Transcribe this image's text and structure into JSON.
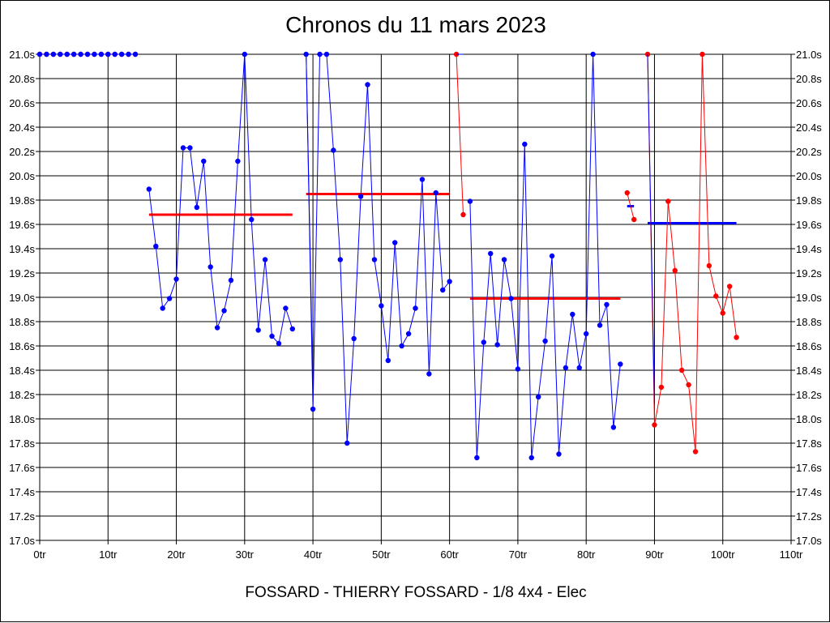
{
  "chart_data": {
    "type": "line",
    "title": "Chronos du 11 mars 2023",
    "xlabel": "FOSSARD - THIERRY FOSSARD - 1/8 4x4 - Elec",
    "ylabel": "",
    "x_ticks": [
      "0tr",
      "10tr",
      "20tr",
      "30tr",
      "40tr",
      "50tr",
      "60tr",
      "70tr",
      "80tr",
      "90tr",
      "100tr",
      "110tr"
    ],
    "y_ticks": [
      "17.0s",
      "17.2s",
      "17.4s",
      "17.6s",
      "17.8s",
      "18.0s",
      "18.2s",
      "18.4s",
      "18.6s",
      "18.8s",
      "19.0s",
      "19.2s",
      "19.4s",
      "19.6s",
      "19.8s",
      "20.0s",
      "20.2s",
      "20.4s",
      "20.6s",
      "20.8s",
      "21.0s"
    ],
    "xlim": [
      0,
      110
    ],
    "ylim": [
      17.0,
      21.0
    ],
    "grid": true,
    "colors": {
      "blue": "#0000ff",
      "red": "#ff0000"
    },
    "series": [
      {
        "color": "#ff0000",
        "marker": true,
        "points": [
          [
            0,
            21.0
          ],
          [
            1,
            21.0
          ],
          [
            2,
            21.0
          ],
          [
            3,
            21.0
          ],
          [
            4,
            21.0
          ],
          [
            5,
            21.0
          ],
          [
            6,
            21.0
          ],
          [
            7,
            21.0
          ],
          [
            8,
            21.0
          ],
          [
            9,
            21.0
          ],
          [
            10,
            21.0
          ],
          [
            11,
            21.0
          ],
          [
            12,
            21.0
          ],
          [
            13,
            21.0
          ],
          [
            14,
            21.0
          ]
        ]
      },
      {
        "color": "#0000ff",
        "marker": true,
        "points": [
          [
            0,
            21.0
          ],
          [
            1,
            21.0
          ],
          [
            2,
            21.0
          ],
          [
            3,
            21.0
          ],
          [
            4,
            21.0
          ],
          [
            5,
            21.0
          ],
          [
            6,
            21.0
          ],
          [
            7,
            21.0
          ],
          [
            8,
            21.0
          ],
          [
            9,
            21.0
          ],
          [
            10,
            21.0
          ],
          [
            11,
            21.0
          ],
          [
            12,
            21.0
          ],
          [
            13,
            21.0
          ],
          [
            14,
            21.0
          ]
        ]
      },
      {
        "color": "#0000ff",
        "marker": true,
        "points": [
          [
            16,
            19.89
          ],
          [
            17,
            19.42
          ],
          [
            18,
            18.91
          ],
          [
            19,
            18.99
          ],
          [
            20,
            19.15
          ],
          [
            21,
            20.23
          ],
          [
            22,
            20.23
          ],
          [
            23,
            19.74
          ],
          [
            24,
            20.12
          ],
          [
            25,
            19.25
          ],
          [
            26,
            18.75
          ],
          [
            27,
            18.89
          ],
          [
            28,
            19.14
          ],
          [
            29,
            20.12
          ],
          [
            30,
            21.0
          ],
          [
            31,
            19.64
          ],
          [
            32,
            18.73
          ],
          [
            33,
            19.31
          ],
          [
            34,
            18.68
          ],
          [
            35,
            18.62
          ],
          [
            36,
            18.91
          ],
          [
            37,
            18.74
          ]
        ]
      },
      {
        "color": "#0000ff",
        "marker": true,
        "points": [
          [
            39,
            21.0
          ],
          [
            40,
            18.08
          ],
          [
            41,
            21.0
          ],
          [
            42,
            21.0
          ],
          [
            43,
            20.21
          ],
          [
            44,
            19.31
          ],
          [
            45,
            17.8
          ],
          [
            46,
            18.66
          ],
          [
            47,
            19.83
          ],
          [
            48,
            20.75
          ],
          [
            49,
            19.31
          ],
          [
            50,
            18.93
          ],
          [
            51,
            18.48
          ],
          [
            52,
            19.45
          ],
          [
            53,
            18.6
          ],
          [
            54,
            18.7
          ],
          [
            55,
            18.91
          ],
          [
            56,
            19.97
          ],
          [
            57,
            18.37
          ],
          [
            58,
            19.86
          ],
          [
            59,
            19.06
          ],
          [
            60,
            19.13
          ]
        ]
      },
      {
        "color": "#0000ff",
        "marker": false,
        "points": [
          [
            39,
            21.0
          ],
          [
            40,
            18.24
          ]
        ]
      },
      {
        "color": "#ff0000",
        "marker": true,
        "points": [
          [
            61,
            21.0
          ],
          [
            62,
            19.68
          ]
        ]
      },
      {
        "color": "#0000ff",
        "marker": false,
        "points": [
          [
            61,
            21.0
          ],
          [
            62,
            21.0
          ]
        ]
      },
      {
        "color": "#0000ff",
        "marker": true,
        "points": [
          [
            63,
            19.79
          ],
          [
            64,
            17.68
          ],
          [
            65,
            18.63
          ],
          [
            66,
            19.36
          ],
          [
            67,
            18.61
          ],
          [
            68,
            19.31
          ],
          [
            69,
            18.99
          ],
          [
            70,
            18.41
          ],
          [
            71,
            20.26
          ],
          [
            72,
            17.68
          ],
          [
            73,
            18.18
          ],
          [
            74,
            18.64
          ],
          [
            75,
            19.34
          ],
          [
            76,
            17.71
          ],
          [
            77,
            18.42
          ],
          [
            78,
            18.86
          ],
          [
            79,
            18.42
          ],
          [
            80,
            18.7
          ],
          [
            81,
            21.0
          ],
          [
            82,
            18.77
          ],
          [
            83,
            18.94
          ],
          [
            84,
            17.93
          ],
          [
            85,
            18.45
          ]
        ]
      },
      {
        "color": "#ff0000",
        "marker": true,
        "points": [
          [
            86,
            19.86
          ],
          [
            87,
            19.64
          ]
        ]
      },
      {
        "color": "#ff0000",
        "marker": true,
        "points": [
          [
            89,
            21.0
          ],
          [
            90,
            17.95
          ],
          [
            91,
            18.26
          ],
          [
            92,
            19.79
          ],
          [
            93,
            19.22
          ],
          [
            94,
            18.4
          ],
          [
            95,
            18.28
          ],
          [
            96,
            17.73
          ],
          [
            97,
            21.0
          ],
          [
            98,
            19.26
          ],
          [
            99,
            19.01
          ],
          [
            100,
            18.87
          ],
          [
            101,
            19.09
          ],
          [
            102,
            18.67
          ]
        ]
      },
      {
        "color": "#0000ff",
        "marker": false,
        "points": [
          [
            89,
            21.0
          ],
          [
            90,
            18.12
          ]
        ]
      }
    ],
    "averages": [
      {
        "color": "#ff0000",
        "x_start": 16,
        "x_end": 37,
        "y": 19.68
      },
      {
        "color": "#ff0000",
        "x_start": 39,
        "x_end": 60,
        "y": 19.85
      },
      {
        "color": "#ff0000",
        "x_start": 63,
        "x_end": 85,
        "y": 18.99
      },
      {
        "color": "#0000ff",
        "x_start": 86,
        "x_end": 87,
        "y": 19.75
      },
      {
        "color": "#0000ff",
        "x_start": 89,
        "x_end": 102,
        "y": 19.61
      }
    ]
  }
}
